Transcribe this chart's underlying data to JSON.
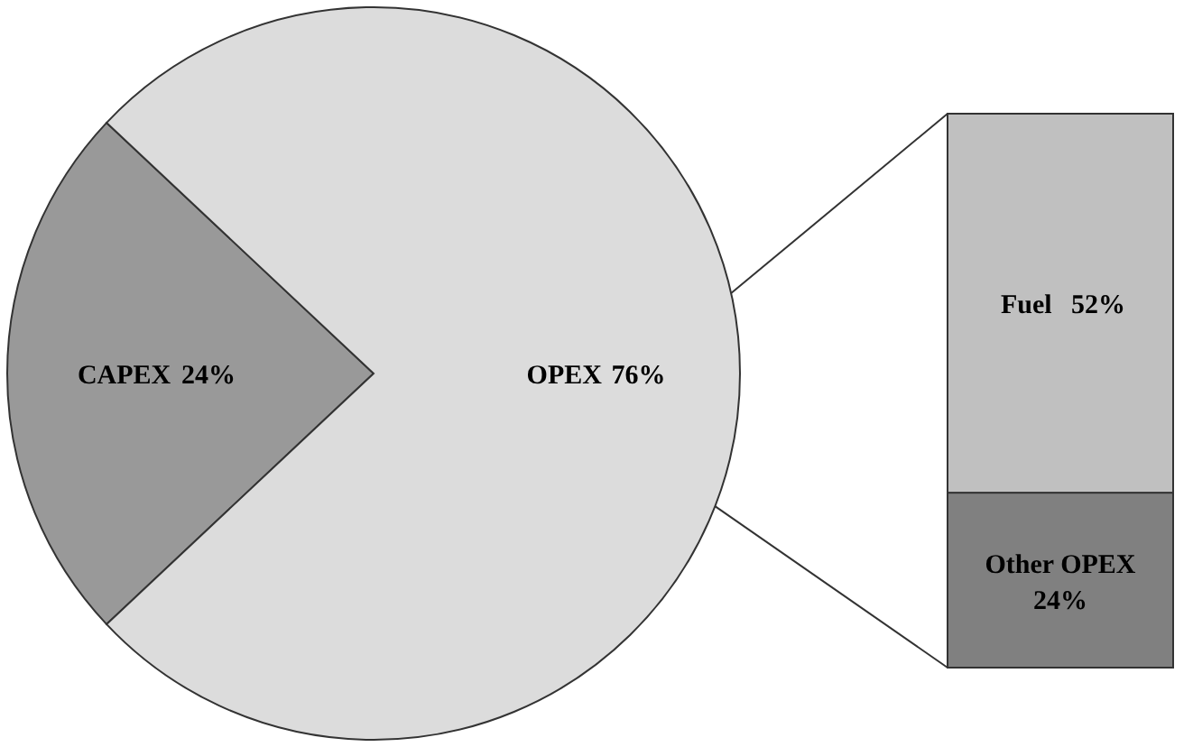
{
  "chart_data": [
    {
      "type": "pie",
      "categories": [
        "CAPEX",
        "OPEX"
      ],
      "values": [
        24,
        76
      ],
      "value_labels": [
        "24%",
        "76%"
      ],
      "colors": [
        "#999999",
        "#dcdcdc"
      ]
    },
    {
      "type": "bar",
      "stacked": true,
      "categories": [
        null
      ],
      "series": [
        {
          "name": "Other OPEX",
          "color": "#808080",
          "values": [
            24
          ],
          "value_labels": [
            "24%"
          ]
        },
        {
          "name": "Fuel",
          "color": "#c0c0c0",
          "values": [
            52
          ],
          "value_labels": [
            "52%"
          ]
        }
      ]
    }
  ]
}
